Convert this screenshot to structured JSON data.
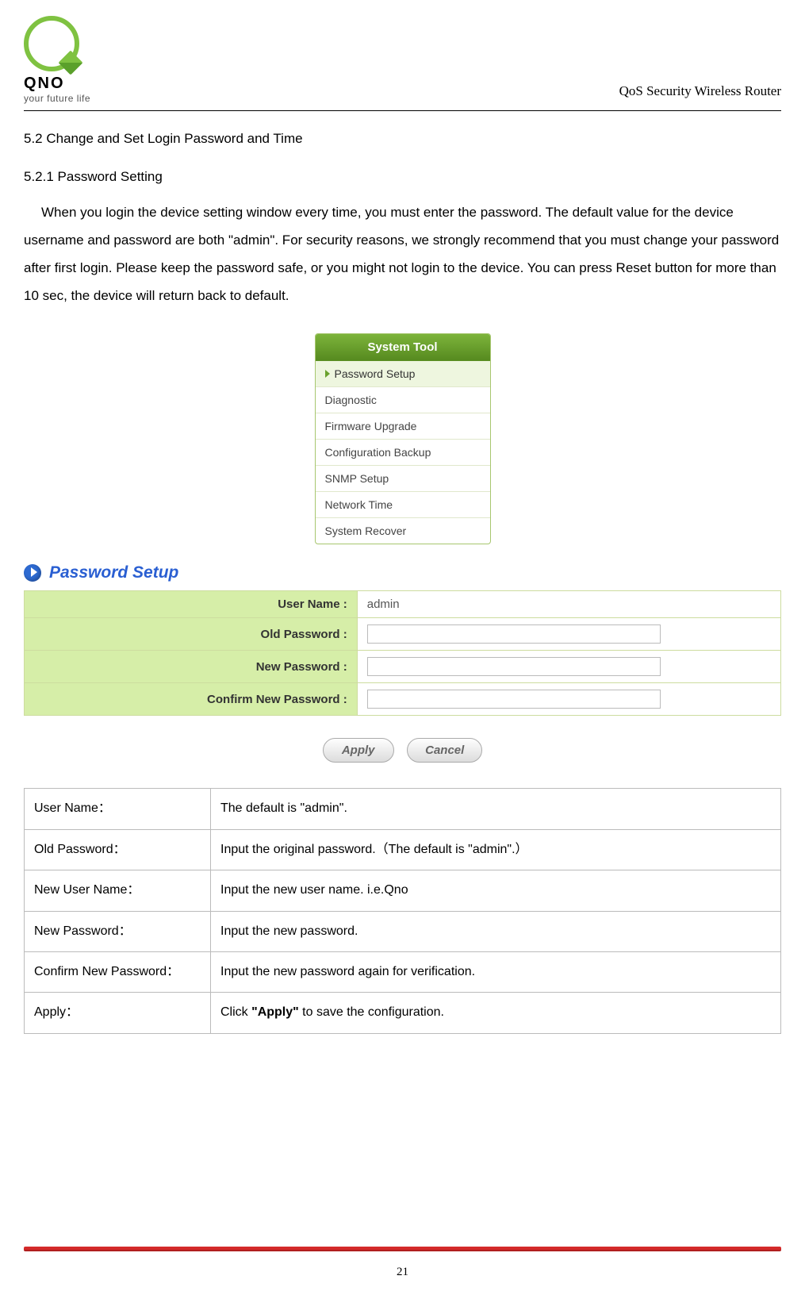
{
  "header": {
    "brand": "QNO",
    "tagline": "your future life",
    "doc_title": "QoS Security Wireless Router"
  },
  "section": {
    "h2": "5.2  Change and Set Login Password and Time",
    "h3": "5.2.1 Password Setting",
    "paragraph": "When you login the device setting window every time, you must enter the password. The default value for the device username and password are both \"admin\". For security reasons, we strongly recommend that you must change your password after first login. Please keep the password safe, or you might not login to the device. You can press Reset button for more than 10 sec, the device will return back to default."
  },
  "menu": {
    "title": "System Tool",
    "items": [
      "Password Setup",
      "Diagnostic",
      "Firmware Upgrade",
      "Configuration Backup",
      "SNMP Setup",
      "Network Time",
      "System Recover"
    ],
    "selected_index": 0
  },
  "panel": {
    "title": "Password Setup",
    "rows": [
      {
        "label": "User Name :",
        "value_text": "admin",
        "type": "text"
      },
      {
        "label": "Old Password :",
        "type": "password"
      },
      {
        "label": "New Password :",
        "type": "password"
      },
      {
        "label": "Confirm New Password :",
        "type": "password"
      }
    ],
    "buttons": {
      "apply": "Apply",
      "cancel": "Cancel"
    }
  },
  "desc_table": {
    "rows": [
      {
        "k": "User Name：",
        "v": "The default is \"admin\"."
      },
      {
        "k": "Old Password：",
        "v": "Input the original password.（The default is \"admin\".）"
      },
      {
        "k": "New User Name：",
        "v": "Input the new user name. i.e.Qno"
      },
      {
        "k": "New Password：",
        "v": "Input the new password."
      },
      {
        "k": "Confirm New Password：",
        "v": "Input the new password again for verification."
      },
      {
        "k": "Apply：",
        "v_pre": "Click ",
        "v_bold": "\"Apply\"",
        "v_post": " to save the configuration."
      }
    ]
  },
  "footer": {
    "page_number": "21"
  },
  "colors": {
    "accent_green": "#7fc241",
    "menu_header_bg_top": "#7db43b",
    "menu_header_bg_bottom": "#568a1f",
    "form_label_bg": "#d6eea8",
    "form_border": "#cddc9f",
    "panel_title_color": "#2a5fd2",
    "footer_rule": "#d42a2a"
  }
}
